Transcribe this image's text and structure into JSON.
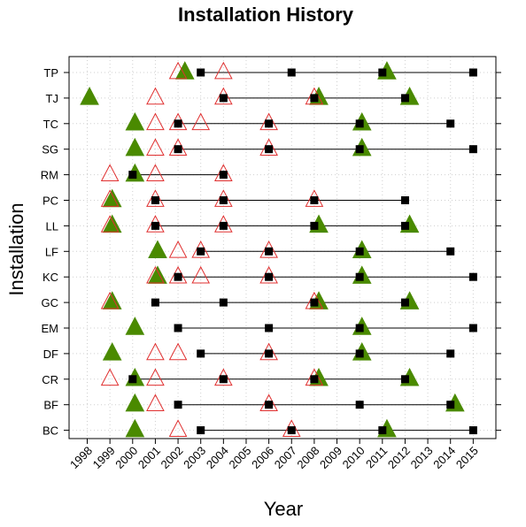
{
  "chart_data": {
    "type": "scatter",
    "title": "Installation History",
    "xlabel": "Year",
    "ylabel": "Installation",
    "xlim": [
      1997.2,
      2016.0
    ],
    "x_ticks": [
      1998,
      1999,
      2000,
      2001,
      2002,
      2003,
      2004,
      2005,
      2006,
      2007,
      2008,
      2009,
      2010,
      2011,
      2012,
      2013,
      2014,
      2015
    ],
    "grid": true,
    "colors": {
      "filled_triangle": "#4a8a00",
      "open_triangle": "#e03030",
      "square": "#000000"
    },
    "installations": [
      {
        "name": "TP",
        "filled_triangles": [
          2002.3,
          2011.2
        ],
        "open_triangles": [
          2002,
          2004
        ],
        "squares": [
          2003,
          2007,
          2011,
          2015
        ]
      },
      {
        "name": "TJ",
        "filled_triangles": [
          1998.1,
          2008.2,
          2012.2
        ],
        "open_triangles": [
          2001,
          2004,
          2008
        ],
        "squares": [
          2004,
          2008,
          2012
        ]
      },
      {
        "name": "TC",
        "filled_triangles": [
          2000.1,
          2010.1
        ],
        "open_triangles": [
          2001,
          2002,
          2003,
          2006
        ],
        "squares": [
          2002,
          2006,
          2010,
          2014
        ]
      },
      {
        "name": "SG",
        "filled_triangles": [
          2000.1,
          2010.1
        ],
        "open_triangles": [
          2001,
          2002,
          2006
        ],
        "squares": [
          2002,
          2006,
          2010,
          2015
        ]
      },
      {
        "name": "RM",
        "filled_triangles": [
          2000.1
        ],
        "open_triangles": [
          1999,
          2001,
          2004
        ],
        "squares": [
          2000,
          2004
        ]
      },
      {
        "name": "PC",
        "filled_triangles": [
          1999.1
        ],
        "open_triangles": [
          1999,
          2001,
          2004,
          2008
        ],
        "squares": [
          2001,
          2004,
          2008,
          2012
        ]
      },
      {
        "name": "LL",
        "filled_triangles": [
          1999.1,
          2008.2,
          2012.2
        ],
        "open_triangles": [
          1999,
          2001,
          2004
        ],
        "squares": [
          2001,
          2004,
          2008,
          2012
        ]
      },
      {
        "name": "LF",
        "filled_triangles": [
          2001.1,
          2010.1
        ],
        "open_triangles": [
          2002,
          2003,
          2006
        ],
        "squares": [
          2003,
          2006,
          2010,
          2014
        ]
      },
      {
        "name": "KC",
        "filled_triangles": [
          2001.1,
          2010.1
        ],
        "open_triangles": [
          2001,
          2002,
          2003,
          2006
        ],
        "squares": [
          2002,
          2006,
          2010,
          2015
        ]
      },
      {
        "name": "GC",
        "filled_triangles": [
          1999.1,
          2008.2,
          2012.2
        ],
        "open_triangles": [
          1999,
          2008
        ],
        "squares": [
          2001,
          2004,
          2008,
          2012
        ]
      },
      {
        "name": "EM",
        "filled_triangles": [
          2000.1,
          2010.1
        ],
        "open_triangles": [],
        "squares": [
          2002,
          2006,
          2010,
          2015
        ]
      },
      {
        "name": "DF",
        "filled_triangles": [
          1999.1,
          2010.1
        ],
        "open_triangles": [
          2001,
          2002,
          2006
        ],
        "squares": [
          2003,
          2006,
          2010,
          2014
        ]
      },
      {
        "name": "CR",
        "filled_triangles": [
          2000.1,
          2008.2,
          2012.2
        ],
        "open_triangles": [
          1999,
          2001,
          2004,
          2008
        ],
        "squares": [
          2000,
          2004,
          2008,
          2012
        ]
      },
      {
        "name": "BF",
        "filled_triangles": [
          2000.1,
          2014.2
        ],
        "open_triangles": [
          2001,
          2006
        ],
        "squares": [
          2002,
          2006,
          2010,
          2014
        ]
      },
      {
        "name": "BC",
        "filled_triangles": [
          2000.1,
          2011.2
        ],
        "open_triangles": [
          2002,
          2007
        ],
        "squares": [
          2003,
          2007,
          2011,
          2015
        ]
      }
    ]
  }
}
